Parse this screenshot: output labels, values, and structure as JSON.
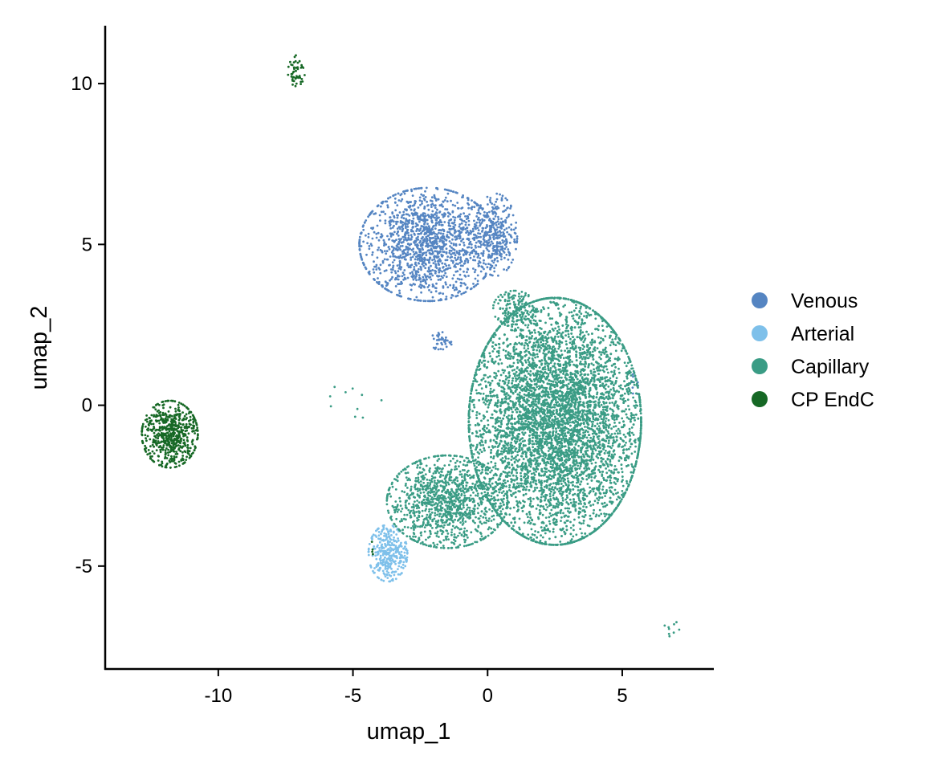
{
  "chart_data": {
    "type": "scatter",
    "title": "",
    "xlabel": "umap_1",
    "ylabel": "umap_2",
    "xlim": [
      -14.2,
      8.4
    ],
    "ylim": [
      -8.2,
      11.8
    ],
    "xticks": [
      -10,
      -5,
      0,
      5
    ],
    "xtick_labels": [
      "-10",
      "-5",
      "0",
      "5"
    ],
    "yticks": [
      -5,
      0,
      5,
      10
    ],
    "ytick_labels": [
      "-5",
      "0",
      "5",
      "10"
    ],
    "grid": false,
    "legend_position": "right",
    "series": [
      {
        "name": "Venous",
        "color": "#5585c2",
        "clusters": [
          {
            "center": [
              -2.2,
              5.0
            ],
            "spread": [
              1.6,
              1.1
            ],
            "n": 1500
          },
          {
            "center": [
              0.3,
              5.3
            ],
            "spread": [
              0.5,
              0.8
            ],
            "n": 300
          },
          {
            "center": [
              -1.7,
              2.0
            ],
            "spread": [
              0.25,
              0.2
            ],
            "n": 40
          },
          {
            "center": [
              5.5,
              0.8
            ],
            "spread": [
              0.15,
              0.3
            ],
            "n": 12
          }
        ]
      },
      {
        "name": "Arterial",
        "color": "#7ec0ea",
        "clusters": [
          {
            "center": [
              -3.7,
              -4.6
            ],
            "spread": [
              0.45,
              0.55
            ],
            "n": 320
          }
        ]
      },
      {
        "name": "Capillary",
        "color": "#3a9c85",
        "clusters": [
          {
            "center": [
              2.5,
              -0.5
            ],
            "spread": [
              2.0,
              2.4
            ],
            "n": 7000
          },
          {
            "center": [
              -1.5,
              -3.0
            ],
            "spread": [
              1.4,
              0.9
            ],
            "n": 1200
          },
          {
            "center": [
              1.0,
              3.0
            ],
            "spread": [
              0.5,
              0.35
            ],
            "n": 150
          },
          {
            "center": [
              7.0,
              -7.0
            ],
            "spread": [
              0.3,
              0.2
            ],
            "n": 9
          },
          {
            "center": [
              -4.9,
              0.2
            ],
            "spread": [
              0.6,
              0.5
            ],
            "n": 10
          }
        ]
      },
      {
        "name": "CP EndC",
        "color": "#166825",
        "clusters": [
          {
            "center": [
              -11.8,
              -0.9
            ],
            "spread": [
              0.65,
              0.65
            ],
            "n": 600
          },
          {
            "center": [
              -7.1,
              10.4
            ],
            "spread": [
              0.2,
              0.3
            ],
            "n": 50
          },
          {
            "center": [
              -4.3,
              -4.4
            ],
            "spread": [
              0.05,
              0.3
            ],
            "n": 4
          }
        ]
      }
    ]
  }
}
